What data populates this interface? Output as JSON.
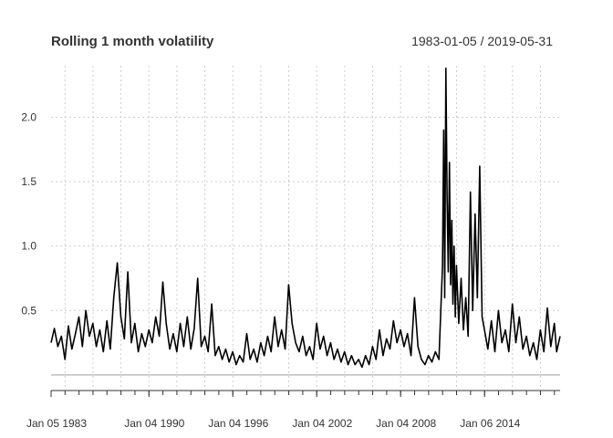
{
  "chart_data": {
    "type": "line",
    "title": "Rolling 1 month volatility",
    "date_range": "1983-01-05 / 2019-05-31",
    "xlabel": "",
    "ylabel": "",
    "x_domain": [
      "1983-01-05",
      "2019-05-31"
    ],
    "ylim": [
      -0.1,
      2.4
    ],
    "y_ticks": [
      0.5,
      1.0,
      1.5,
      2.0
    ],
    "y_tick_labels": [
      "0.5",
      "1.0",
      "1.5",
      "2.0"
    ],
    "x_tick_labels": [
      {
        "date": "1983-01-05",
        "label": "Jan 05 1983"
      },
      {
        "date": "1990-01-04",
        "label": "Jan 04 1990"
      },
      {
        "date": "1996-01-04",
        "label": "Jan 04 1996"
      },
      {
        "date": "2002-01-04",
        "label": "Jan 04 2002"
      },
      {
        "date": "2008-01-04",
        "label": "Jan 04 2008"
      },
      {
        "date": "2014-01-06",
        "label": "Jan 06 2014"
      }
    ],
    "grid": true,
    "series": [
      {
        "values": [
          [
            "1983-01-05",
            0.25
          ],
          [
            "1983-04-01",
            0.36
          ],
          [
            "1983-07-01",
            0.22
          ],
          [
            "1983-10-01",
            0.3
          ],
          [
            "1984-01-01",
            0.12
          ],
          [
            "1984-04-01",
            0.38
          ],
          [
            "1984-07-01",
            0.2
          ],
          [
            "1984-10-01",
            0.32
          ],
          [
            "1985-01-01",
            0.45
          ],
          [
            "1985-04-01",
            0.22
          ],
          [
            "1985-07-01",
            0.5
          ],
          [
            "1985-10-01",
            0.3
          ],
          [
            "1986-01-01",
            0.4
          ],
          [
            "1986-04-01",
            0.22
          ],
          [
            "1986-07-01",
            0.35
          ],
          [
            "1986-10-01",
            0.18
          ],
          [
            "1987-01-01",
            0.42
          ],
          [
            "1987-04-01",
            0.2
          ],
          [
            "1987-07-01",
            0.6
          ],
          [
            "1987-10-01",
            0.87
          ],
          [
            "1988-01-01",
            0.45
          ],
          [
            "1988-04-01",
            0.28
          ],
          [
            "1988-07-01",
            0.8
          ],
          [
            "1988-10-01",
            0.25
          ],
          [
            "1989-01-01",
            0.4
          ],
          [
            "1989-04-01",
            0.18
          ],
          [
            "1989-07-01",
            0.32
          ],
          [
            "1989-10-01",
            0.22
          ],
          [
            "1990-01-01",
            0.35
          ],
          [
            "1990-04-01",
            0.25
          ],
          [
            "1990-07-01",
            0.45
          ],
          [
            "1990-10-01",
            0.3
          ],
          [
            "1991-01-01",
            0.72
          ],
          [
            "1991-04-01",
            0.4
          ],
          [
            "1991-07-01",
            0.2
          ],
          [
            "1991-10-01",
            0.32
          ],
          [
            "1992-01-01",
            0.18
          ],
          [
            "1992-04-01",
            0.4
          ],
          [
            "1992-07-01",
            0.22
          ],
          [
            "1992-10-01",
            0.45
          ],
          [
            "1993-01-01",
            0.2
          ],
          [
            "1993-04-01",
            0.36
          ],
          [
            "1993-07-01",
            0.75
          ],
          [
            "1993-10-01",
            0.22
          ],
          [
            "1994-01-01",
            0.3
          ],
          [
            "1994-04-01",
            0.18
          ],
          [
            "1994-07-01",
            0.55
          ],
          [
            "1994-10-01",
            0.15
          ],
          [
            "1995-01-01",
            0.22
          ],
          [
            "1995-04-01",
            0.12
          ],
          [
            "1995-07-01",
            0.2
          ],
          [
            "1995-10-01",
            0.1
          ],
          [
            "1996-01-01",
            0.18
          ],
          [
            "1996-04-01",
            0.08
          ],
          [
            "1996-07-01",
            0.15
          ],
          [
            "1996-10-01",
            0.1
          ],
          [
            "1997-01-01",
            0.32
          ],
          [
            "1997-04-01",
            0.12
          ],
          [
            "1997-07-01",
            0.2
          ],
          [
            "1997-10-01",
            0.1
          ],
          [
            "1998-01-01",
            0.25
          ],
          [
            "1998-04-01",
            0.15
          ],
          [
            "1998-07-01",
            0.3
          ],
          [
            "1998-10-01",
            0.18
          ],
          [
            "1999-01-01",
            0.45
          ],
          [
            "1999-04-01",
            0.22
          ],
          [
            "1999-07-01",
            0.35
          ],
          [
            "1999-10-01",
            0.2
          ],
          [
            "2000-01-01",
            0.7
          ],
          [
            "2000-04-01",
            0.4
          ],
          [
            "2000-07-01",
            0.25
          ],
          [
            "2000-10-01",
            0.18
          ],
          [
            "2001-01-01",
            0.3
          ],
          [
            "2001-04-01",
            0.15
          ],
          [
            "2001-07-01",
            0.22
          ],
          [
            "2001-10-01",
            0.12
          ],
          [
            "2002-01-01",
            0.4
          ],
          [
            "2002-04-01",
            0.2
          ],
          [
            "2002-07-01",
            0.3
          ],
          [
            "2002-10-01",
            0.15
          ],
          [
            "2003-01-01",
            0.25
          ],
          [
            "2003-04-01",
            0.12
          ],
          [
            "2003-07-01",
            0.2
          ],
          [
            "2003-10-01",
            0.1
          ],
          [
            "2004-01-01",
            0.18
          ],
          [
            "2004-04-01",
            0.08
          ],
          [
            "2004-07-01",
            0.15
          ],
          [
            "2004-10-01",
            0.08
          ],
          [
            "2005-01-01",
            0.12
          ],
          [
            "2005-04-01",
            0.06
          ],
          [
            "2005-07-01",
            0.15
          ],
          [
            "2005-10-01",
            0.08
          ],
          [
            "2006-01-01",
            0.22
          ],
          [
            "2006-04-01",
            0.12
          ],
          [
            "2006-07-01",
            0.35
          ],
          [
            "2006-10-01",
            0.15
          ],
          [
            "2007-01-01",
            0.28
          ],
          [
            "2007-04-01",
            0.2
          ],
          [
            "2007-07-01",
            0.42
          ],
          [
            "2007-10-01",
            0.25
          ],
          [
            "2008-01-01",
            0.35
          ],
          [
            "2008-04-01",
            0.22
          ],
          [
            "2008-07-01",
            0.32
          ],
          [
            "2008-10-01",
            0.15
          ],
          [
            "2009-01-01",
            0.6
          ],
          [
            "2009-04-01",
            0.22
          ],
          [
            "2009-07-01",
            0.12
          ],
          [
            "2009-10-01",
            0.08
          ],
          [
            "2010-01-01",
            0.15
          ],
          [
            "2010-04-01",
            0.1
          ],
          [
            "2010-07-01",
            0.18
          ],
          [
            "2010-10-01",
            0.12
          ],
          [
            "2011-01-01",
            0.85
          ],
          [
            "2011-02-01",
            1.9
          ],
          [
            "2011-03-01",
            0.6
          ],
          [
            "2011-04-01",
            2.38
          ],
          [
            "2011-05-01",
            1.4
          ],
          [
            "2011-06-01",
            0.8
          ],
          [
            "2011-07-01",
            1.65
          ],
          [
            "2011-08-01",
            0.7
          ],
          [
            "2011-09-01",
            1.2
          ],
          [
            "2011-10-01",
            0.55
          ],
          [
            "2011-11-01",
            1.0
          ],
          [
            "2011-12-01",
            0.45
          ],
          [
            "2012-01-01",
            0.85
          ],
          [
            "2012-03-01",
            0.4
          ],
          [
            "2012-05-01",
            0.75
          ],
          [
            "2012-07-01",
            0.35
          ],
          [
            "2012-09-01",
            0.6
          ],
          [
            "2012-11-01",
            0.3
          ],
          [
            "2013-01-01",
            1.42
          ],
          [
            "2013-03-01",
            0.5
          ],
          [
            "2013-05-01",
            1.25
          ],
          [
            "2013-07-01",
            0.6
          ],
          [
            "2013-09-01",
            1.62
          ],
          [
            "2013-11-01",
            0.45
          ],
          [
            "2014-01-01",
            0.35
          ],
          [
            "2014-04-01",
            0.2
          ],
          [
            "2014-07-01",
            0.42
          ],
          [
            "2014-10-01",
            0.18
          ],
          [
            "2015-01-01",
            0.5
          ],
          [
            "2015-04-01",
            0.25
          ],
          [
            "2015-07-01",
            0.35
          ],
          [
            "2015-10-01",
            0.18
          ],
          [
            "2016-01-01",
            0.55
          ],
          [
            "2016-04-01",
            0.25
          ],
          [
            "2016-07-01",
            0.45
          ],
          [
            "2016-10-01",
            0.2
          ],
          [
            "2017-01-01",
            0.3
          ],
          [
            "2017-04-01",
            0.15
          ],
          [
            "2017-07-01",
            0.25
          ],
          [
            "2017-10-01",
            0.12
          ],
          [
            "2018-01-01",
            0.35
          ],
          [
            "2018-04-01",
            0.18
          ],
          [
            "2018-07-01",
            0.52
          ],
          [
            "2018-10-01",
            0.22
          ],
          [
            "2019-01-01",
            0.4
          ],
          [
            "2019-03-01",
            0.18
          ],
          [
            "2019-05-31",
            0.3
          ]
        ]
      }
    ]
  }
}
